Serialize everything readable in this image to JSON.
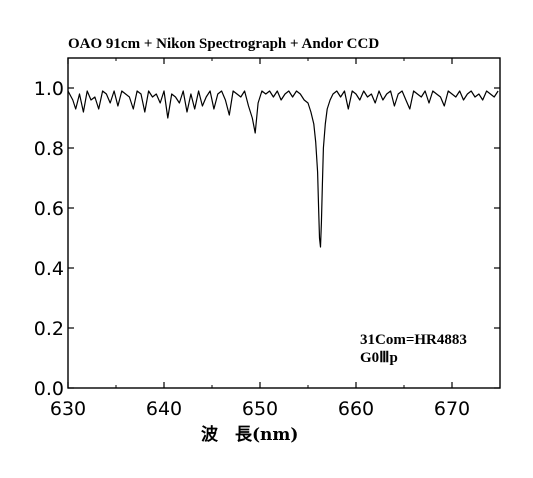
{
  "chart_data": {
    "type": "line",
    "title": "OAO 91cm + Nikon Spectrograph + Andor CCD",
    "xlabel": "波　長(nm)",
    "ylabel": "",
    "xlim": [
      630,
      675
    ],
    "ylim": [
      0.0,
      1.1
    ],
    "x_ticks": [
      630,
      640,
      650,
      660,
      670
    ],
    "x_tick_labels": [
      "630",
      "640",
      "650",
      "660",
      "670"
    ],
    "y_ticks": [
      0.0,
      0.2,
      0.4,
      0.6,
      0.8,
      1.0
    ],
    "y_tick_labels": [
      "0.0",
      "0.2",
      "0.4",
      "0.6",
      "0.8",
      "1.0"
    ],
    "grid": false,
    "annotations": [
      "31Com=HR4883",
      "G0Ⅲp"
    ],
    "series": [
      {
        "color": "#000000",
        "x": [
          630.0,
          630.5,
          630.8,
          631.2,
          631.6,
          632.0,
          632.4,
          632.8,
          633.2,
          633.6,
          634.0,
          634.4,
          634.8,
          635.2,
          635.6,
          636.0,
          636.4,
          636.8,
          637.2,
          637.6,
          638.0,
          638.4,
          638.8,
          639.2,
          639.6,
          640.0,
          640.4,
          640.8,
          641.2,
          641.6,
          642.0,
          642.4,
          642.8,
          643.2,
          643.6,
          644.0,
          644.4,
          644.8,
          645.2,
          645.6,
          646.0,
          646.4,
          646.8,
          647.2,
          647.6,
          648.0,
          648.4,
          648.8,
          649.2,
          649.5,
          649.8,
          650.2,
          650.6,
          651.0,
          651.4,
          651.8,
          652.2,
          652.6,
          653.0,
          653.4,
          653.8,
          654.2,
          654.6,
          655.0,
          655.3,
          655.6,
          655.8,
          656.0,
          656.1,
          656.2,
          656.3,
          656.4,
          656.5,
          656.6,
          656.8,
          657.0,
          657.3,
          657.6,
          658.0,
          658.4,
          658.8,
          659.2,
          659.6,
          660.0,
          660.4,
          660.8,
          661.2,
          661.6,
          662.0,
          662.4,
          662.8,
          663.2,
          663.6,
          664.0,
          664.4,
          664.8,
          665.2,
          665.6,
          666.0,
          666.4,
          666.8,
          667.2,
          667.6,
          668.0,
          668.4,
          668.8,
          669.2,
          669.6,
          670.0,
          670.4,
          670.8,
          671.2,
          671.6,
          672.0,
          672.4,
          672.8,
          673.2,
          673.6,
          674.0,
          674.4,
          674.8
        ],
        "y": [
          0.99,
          0.96,
          0.93,
          0.98,
          0.92,
          0.99,
          0.96,
          0.97,
          0.93,
          0.99,
          0.98,
          0.95,
          0.99,
          0.94,
          0.99,
          0.98,
          0.97,
          0.93,
          0.99,
          0.98,
          0.92,
          0.99,
          0.97,
          0.98,
          0.95,
          0.99,
          0.9,
          0.98,
          0.97,
          0.95,
          0.99,
          0.92,
          0.98,
          0.93,
          0.99,
          0.94,
          0.97,
          0.99,
          0.93,
          0.98,
          0.99,
          0.96,
          0.91,
          0.99,
          0.98,
          0.97,
          0.99,
          0.94,
          0.9,
          0.85,
          0.95,
          0.99,
          0.98,
          0.99,
          0.97,
          0.99,
          0.96,
          0.98,
          0.99,
          0.97,
          0.99,
          0.98,
          0.96,
          0.95,
          0.92,
          0.88,
          0.82,
          0.72,
          0.6,
          0.5,
          0.47,
          0.55,
          0.68,
          0.8,
          0.88,
          0.93,
          0.96,
          0.98,
          0.99,
          0.97,
          0.99,
          0.93,
          0.99,
          0.98,
          0.96,
          0.99,
          0.97,
          0.98,
          0.95,
          0.99,
          0.96,
          0.98,
          0.99,
          0.94,
          0.98,
          0.99,
          0.96,
          0.93,
          0.99,
          0.98,
          0.97,
          0.99,
          0.95,
          0.99,
          0.98,
          0.97,
          0.94,
          0.99,
          0.98,
          0.97,
          0.99,
          0.96,
          0.98,
          0.99,
          0.97,
          0.98,
          0.96,
          0.99,
          0.98,
          0.97,
          0.99
        ]
      }
    ]
  }
}
